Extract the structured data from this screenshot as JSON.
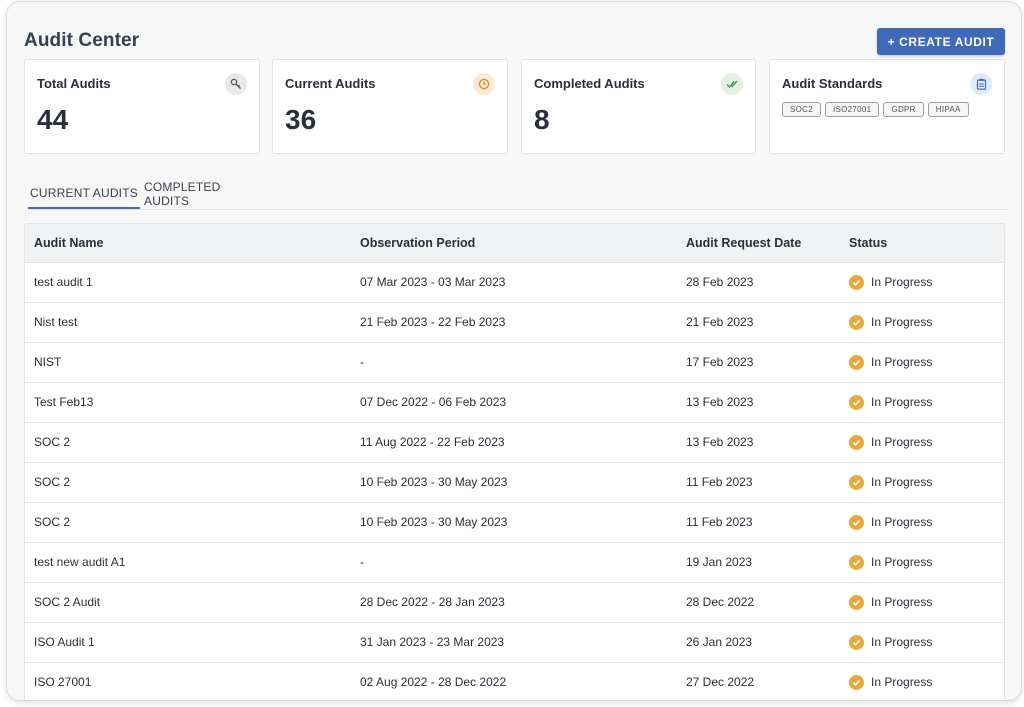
{
  "header": {
    "title": "Audit Center",
    "create_button_label": "+ CREATE AUDIT"
  },
  "cards": {
    "total": {
      "title": "Total Audits",
      "value": "44",
      "icon": "key-icon"
    },
    "current": {
      "title": "Current Audits",
      "value": "36",
      "icon": "clock-icon"
    },
    "completed": {
      "title": "Completed Audits",
      "value": "8",
      "icon": "double-check-icon"
    },
    "standards": {
      "title": "Audit Standards",
      "icon": "clipboard-icon",
      "tags": [
        "SOC2",
        "ISO27001",
        "GDPR",
        "HIPAA"
      ]
    }
  },
  "tabs": [
    "CURRENT AUDITS",
    "COMPLETED AUDITS"
  ],
  "table": {
    "columns": [
      "Audit Name",
      "Observation Period",
      "Audit Request Date",
      "Status"
    ],
    "rows": [
      [
        "test audit 1",
        "07 Mar 2023 - 03 Mar 2023",
        "28 Feb 2023",
        "In Progress"
      ],
      [
        "Nist test",
        "21 Feb 2023 - 22 Feb 2023",
        "21 Feb 2023",
        "In Progress"
      ],
      [
        "NIST",
        "-",
        "17 Feb 2023",
        "In Progress"
      ],
      [
        "Test Feb13",
        "07 Dec 2022 - 06 Feb 2023",
        "13 Feb 2023",
        "In Progress"
      ],
      [
        "SOC 2",
        "11 Aug 2022 - 22 Feb 2023",
        "13 Feb 2023",
        "In Progress"
      ],
      [
        "SOC 2",
        "10 Feb 2023 - 30 May 2023",
        "11 Feb 2023",
        "In Progress"
      ],
      [
        "SOC 2",
        "10 Feb 2023 - 30 May 2023",
        "11 Feb 2023",
        "In Progress"
      ],
      [
        "test new audit A1",
        "-",
        "19 Jan 2023",
        "In Progress"
      ],
      [
        "SOC 2 Audit",
        "28 Dec 2022 - 28 Jan 2023",
        "28 Dec 2022",
        "In Progress"
      ],
      [
        "ISO Audit 1",
        "31 Jan 2023 - 23 Mar 2023",
        "26 Jan 2023",
        "In Progress"
      ],
      [
        "ISO 27001",
        "02 Aug 2022 - 28 Dec 2022",
        "27 Dec 2022",
        "In Progress"
      ]
    ],
    "status_icon": "check-circle-icon"
  },
  "colors": {
    "accent": "#3f6ab7",
    "status_in_progress": "#e9a93b"
  }
}
